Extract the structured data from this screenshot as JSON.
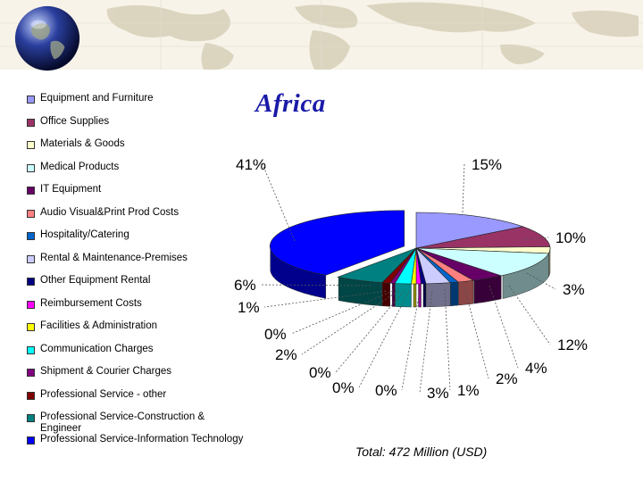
{
  "title": "Africa",
  "chart_data": {
    "type": "pie",
    "title": "Africa",
    "categories": [
      "Equipment and Furniture",
      "Office Supplies",
      "Materials & Goods",
      "Medical Products",
      "IT Equipment",
      "Audio Visual&Print Prod Costs",
      "Hospitality/Catering",
      "Rental & Maintenance-Premises",
      "Other Equipment Rental",
      "Reimbursement Costs",
      "Facilities & Administration",
      "Communication Charges",
      "Shipment & Courier Charges",
      "Professional Service - other",
      "Professional Service-Construction & Engineer",
      "Professional Service-Information Technology"
    ],
    "values": [
      15,
      10,
      3,
      12,
      4,
      2,
      1,
      3,
      0,
      0,
      0,
      2,
      0,
      1,
      6,
      41
    ],
    "value_labels": [
      "15%",
      "10%",
      "3%",
      "12%",
      "4%",
      "2%",
      "1%",
      "3%",
      "0%",
      "0%",
      "0%",
      "2%",
      "0%",
      "1%",
      "6%",
      "41%"
    ],
    "colors": [
      "#9999ff",
      "#993366",
      "#ffffcc",
      "#ccffff",
      "#660066",
      "#ff8080",
      "#0066cc",
      "#ccccff",
      "#000080",
      "#ff00ff",
      "#ffff00",
      "#00ffff",
      "#800080",
      "#800000",
      "#008080",
      "#0000ff"
    ],
    "legend_position": "left",
    "note": "Total: 472 Million (USD)"
  }
}
